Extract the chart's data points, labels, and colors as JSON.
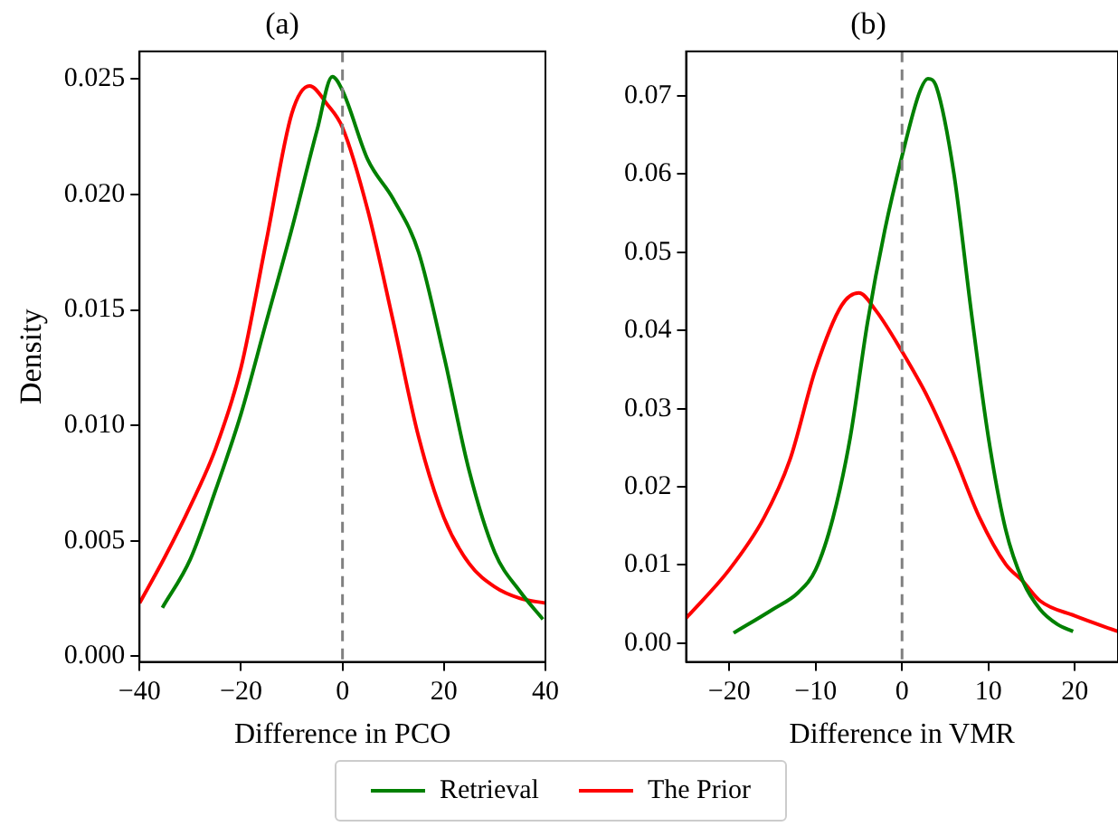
{
  "chart_data": [
    {
      "type": "line",
      "title": "(a)",
      "xlabel": "Difference in PCO",
      "ylabel": "Density",
      "xlim": [
        -40,
        40
      ],
      "xticks": [
        -40,
        -20,
        0,
        20,
        40
      ],
      "ylim": [
        -0.00025,
        0.0262
      ],
      "yticks": [
        {
          "value": 0,
          "label": "0.000"
        },
        0.005,
        {
          "value": 0.01,
          "label": "0.010"
        },
        0.015,
        {
          "value": 0.02,
          "label": "0.020"
        },
        0.025
      ],
      "grid": false,
      "legend": "bottom",
      "marker": "none",
      "line_style": "solid",
      "ref_lines": [
        {
          "axis": "x",
          "value": 0,
          "color": "#808080",
          "line_style": "dashed"
        }
      ],
      "series": [
        {
          "name": "Retrieval",
          "color": "#008000",
          "x": [
            -35.5,
            -30,
            -25,
            -20,
            -15,
            -10,
            -5,
            -2,
            0,
            5,
            10,
            15,
            20,
            25,
            30,
            35,
            39.5
          ],
          "values": [
            0.0021,
            0.0042,
            0.0072,
            0.0105,
            0.0145,
            0.0185,
            0.0228,
            0.0251,
            0.0245,
            0.0215,
            0.0198,
            0.0175,
            0.013,
            0.008,
            0.0045,
            0.0028,
            0.0016
          ]
        },
        {
          "name": "The Prior",
          "color": "#ff0000",
          "x": [
            -40,
            -35,
            -30,
            -25,
            -20,
            -15,
            -10,
            -6.5,
            -3,
            0,
            5,
            10,
            15,
            20,
            25,
            30,
            35,
            40
          ],
          "values": [
            0.0023,
            0.0043,
            0.0065,
            0.009,
            0.0125,
            0.018,
            0.0235,
            0.0247,
            0.0239,
            0.0229,
            0.0193,
            0.0145,
            0.0095,
            0.006,
            0.004,
            0.003,
            0.0025,
            0.0023
          ]
        }
      ]
    },
    {
      "type": "line",
      "title": "(b)",
      "xlabel": "Difference in VMR",
      "xlim": [
        -25,
        25
      ],
      "xticks": [
        -20,
        -10,
        0,
        10,
        20
      ],
      "ylim": [
        -0.0024,
        0.0757
      ],
      "yticks": [
        {
          "value": 0,
          "label": "0.00"
        },
        0.01,
        0.02,
        0.03,
        0.04,
        0.05,
        0.06,
        0.07
      ],
      "grid": false,
      "legend": "bottom",
      "marker": "none",
      "line_style": "solid",
      "ref_lines": [
        {
          "axis": "x",
          "value": 0,
          "color": "#808080",
          "line_style": "dashed"
        }
      ],
      "series": [
        {
          "name": "Retrieval",
          "color": "#008000",
          "x": [
            -19.5,
            -15,
            -12,
            -10,
            -8,
            -6,
            -4,
            -2,
            0,
            2,
            3,
            4,
            6,
            8,
            10,
            12,
            14,
            16,
            18,
            19.8
          ],
          "values": [
            0.0013,
            0.0043,
            0.0065,
            0.0094,
            0.016,
            0.0263,
            0.041,
            0.0528,
            0.0623,
            0.0704,
            0.0722,
            0.0711,
            0.0601,
            0.0425,
            0.0263,
            0.0145,
            0.0079,
            0.0043,
            0.0024,
            0.0015
          ]
        },
        {
          "name": "The Prior",
          "color": "#ff0000",
          "x": [
            -25,
            -20,
            -16,
            -13,
            -10,
            -7,
            -5,
            -3,
            0,
            3,
            6,
            9,
            12,
            14,
            16,
            20,
            25
          ],
          "values": [
            0.0032,
            0.0094,
            0.016,
            0.0234,
            0.0351,
            0.0432,
            0.0448,
            0.0425,
            0.0373,
            0.0314,
            0.0241,
            0.016,
            0.0101,
            0.0079,
            0.0054,
            0.0035,
            0.0015
          ]
        }
      ]
    }
  ]
}
